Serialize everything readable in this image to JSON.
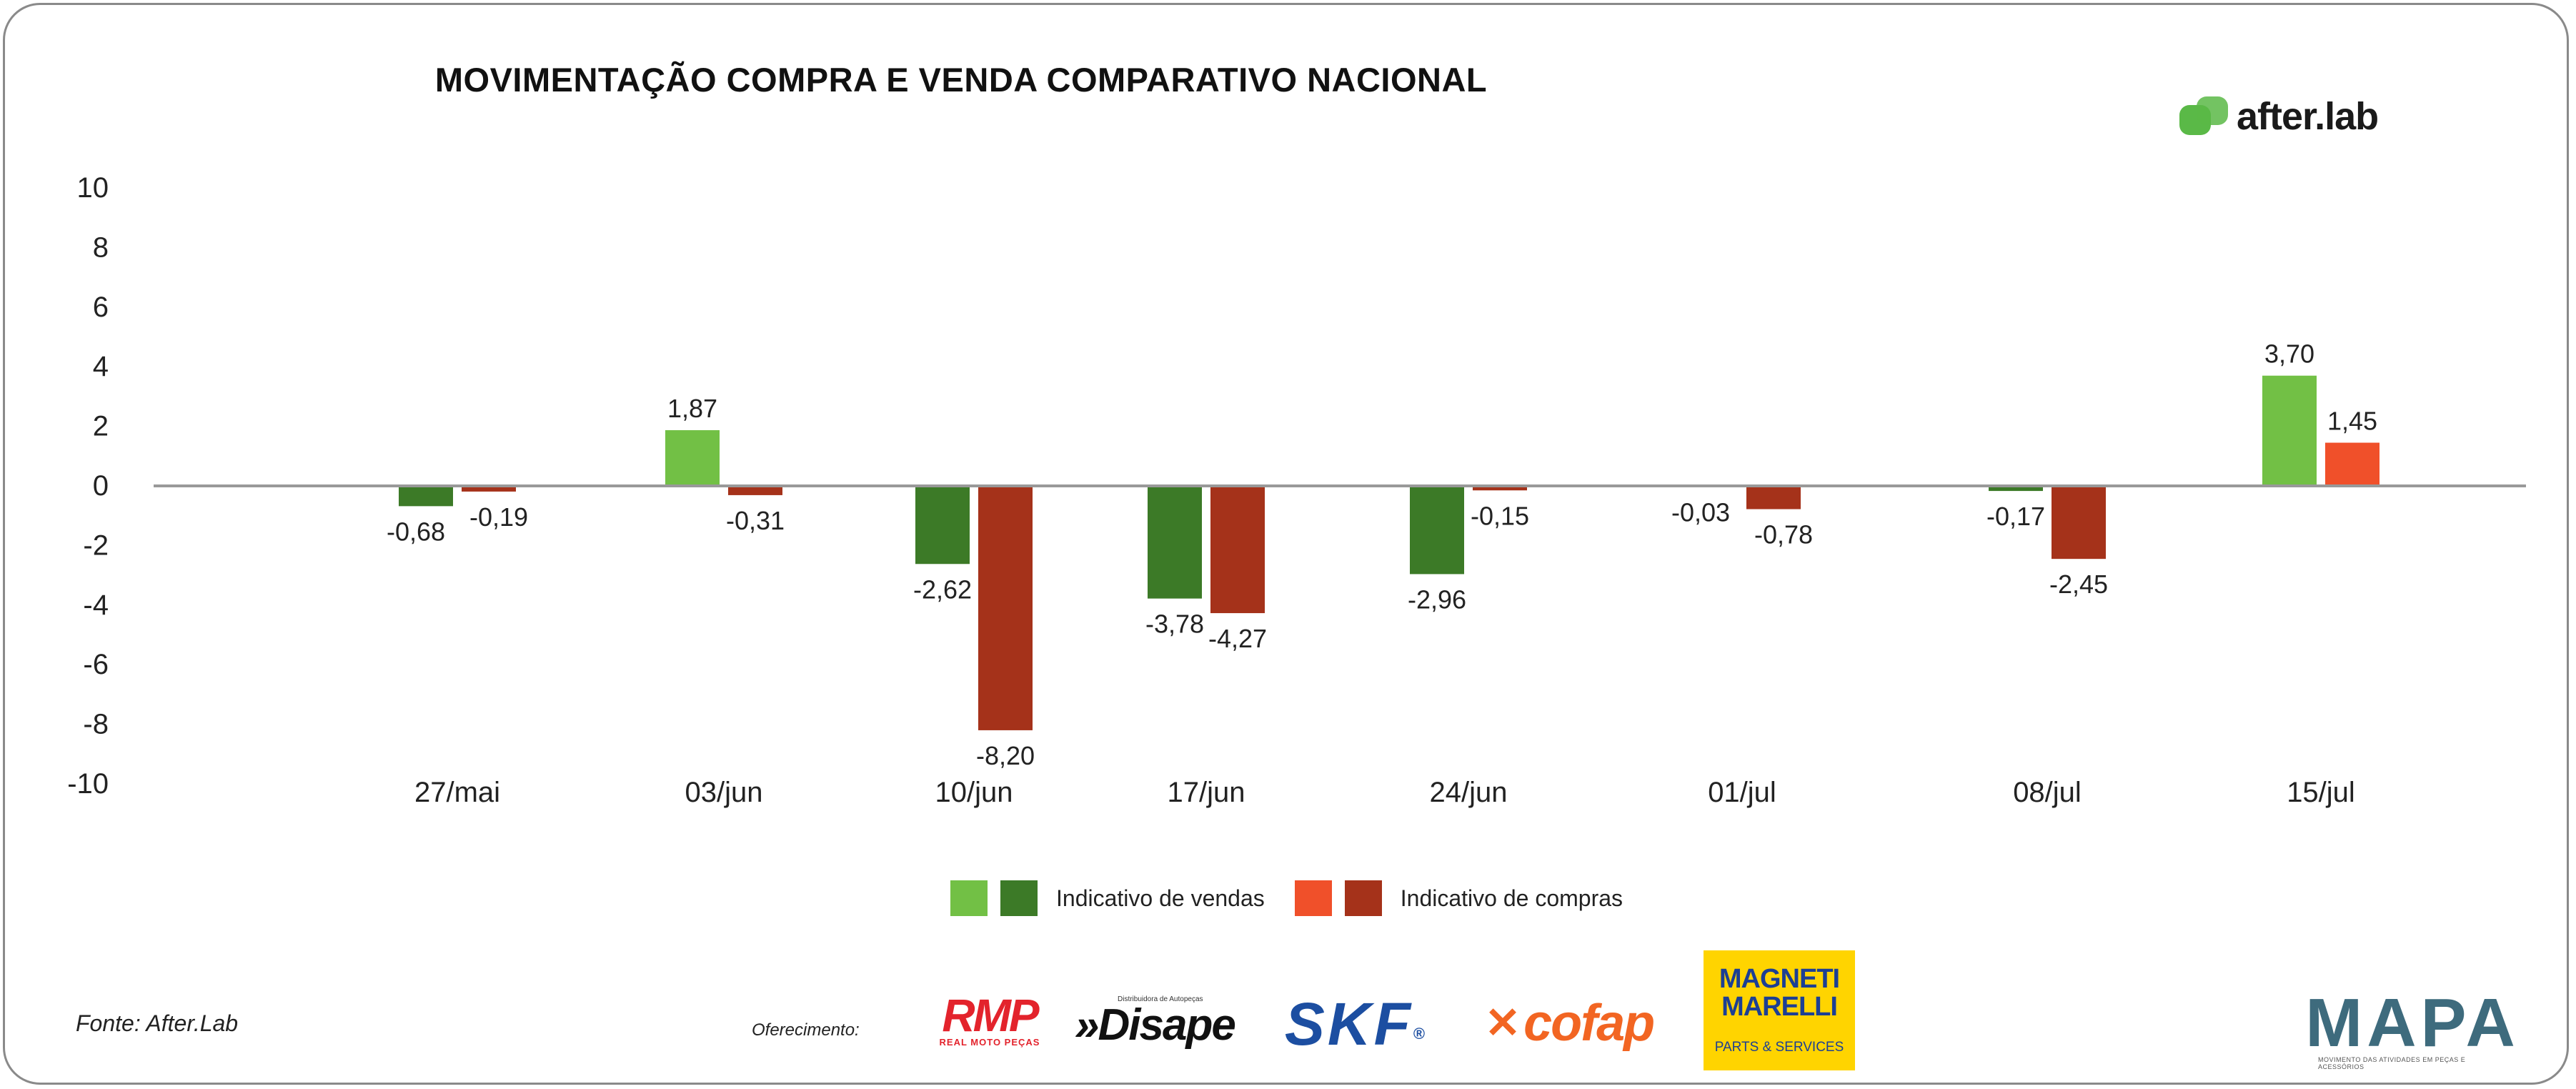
{
  "title": "MOVIMENTAÇÃO COMPRA E VENDA COMPARATIVO NACIONAL",
  "brand": "after.lab",
  "source": "Fonte: After.Lab",
  "offer_label": "Oferecimento:",
  "sponsors": {
    "rmp": "RMP",
    "rmp_tag": "REAL MOTO PEÇAS",
    "disape_tag": "Distribuidora de Autopeças",
    "disape": "»Disape",
    "skf": "SKF",
    "skf_mark": "®",
    "cofap": "cofap",
    "magneti_1": "MAGNETI",
    "magneti_2": "MARELLI",
    "magneti_3": "PARTS & SERVICES",
    "mapa": "MAPA",
    "mapa_tag": "MOVIMENTO DAS ATIVIDADES EM PEÇAS E ACESSÓRIOS"
  },
  "legend": {
    "vendas": "Indicativo de vendas",
    "compras": "Indicativo de compras"
  },
  "colors": {
    "vendas_light": "#72c045",
    "vendas_dark": "#3c7a27",
    "compras_light": "#f0502a",
    "compras_dark": "#a5321a",
    "baseline": "#999999",
    "afterlab_green": "#5ab947"
  },
  "chart_data": {
    "type": "bar",
    "title": "MOVIMENTAÇÃO COMPRA E VENDA COMPARATIVO NACIONAL",
    "categories": [
      "27/mai",
      "03/jun",
      "10/jun",
      "17/jun",
      "24/jun",
      "01/jul",
      "08/jul",
      "15/jul"
    ],
    "series": [
      {
        "name": "Indicativo de vendas",
        "values": [
          -0.68,
          1.87,
          -2.62,
          -3.78,
          -2.96,
          -0.03,
          -0.17,
          3.7
        ],
        "labels": [
          "-0,68",
          "1,87",
          "-2,62",
          "-3,78",
          "-2,96",
          "-0,03",
          "-0,17",
          "3,70"
        ]
      },
      {
        "name": "Indicativo de compras",
        "values": [
          -0.19,
          -0.31,
          -8.2,
          -4.27,
          -0.15,
          -0.78,
          -2.45,
          1.45
        ],
        "labels": [
          "-0,19",
          "-0,31",
          "-8,20",
          "-4,27",
          "-0,15",
          "-0,78",
          "-2,45",
          "1,45"
        ]
      }
    ],
    "yticks": [
      10,
      8,
      6,
      4,
      2,
      0,
      -2,
      -4,
      -6,
      -8,
      -10
    ],
    "ylim": [
      -10,
      10
    ],
    "xlabel": "",
    "ylabel": ""
  }
}
